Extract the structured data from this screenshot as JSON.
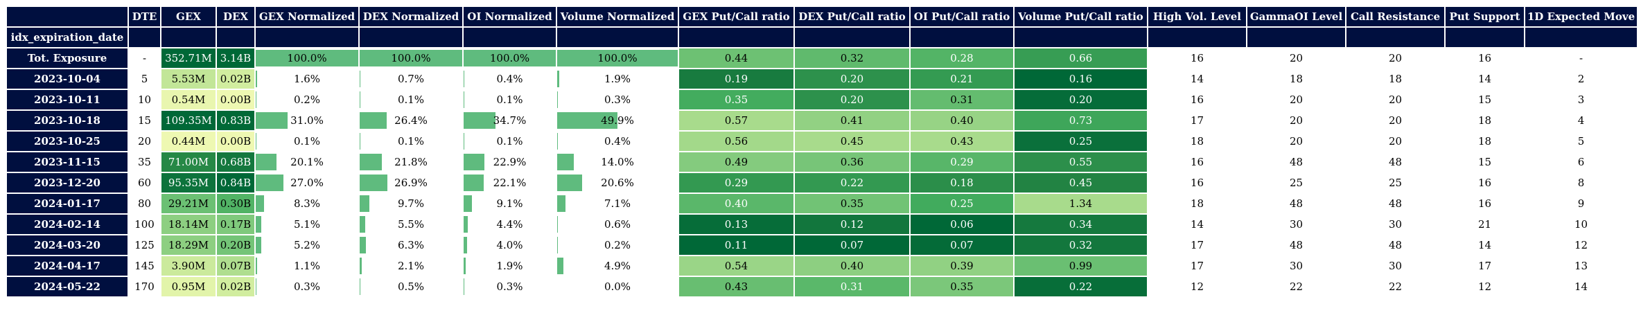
{
  "columns": [
    "DTE",
    "GEX",
    "DEX",
    "GEX Normalized",
    "DEX Normalized",
    "OI Normalized",
    "Volume Normalized",
    "GEX Put/Call ratio",
    "DEX Put/Call ratio",
    "OI Put/Call ratio",
    "Volume Put/Call ratio",
    "High Vol. Level",
    "GammaOI Level",
    "Call Resistance",
    "Put Support",
    "1D Expected Move"
  ],
  "index_name": "idx_expiration_date",
  "colors": {
    "header": "#000f3f",
    "bar": "#5fbb7e"
  },
  "rows": [
    {
      "label": "Tot. Exposure",
      "dte": "-",
      "gex": "352.71M",
      "dex": "3.14B",
      "gexn": "100.0%",
      "dexn": "100.0%",
      "oin": "100.0%",
      "voln": "100.0%",
      "gexpc": "0.44",
      "dexpc": "0.32",
      "oipc": "0.28",
      "volpc": "0.66",
      "hvl": "16",
      "gamma": "20",
      "cr": "20",
      "ps": "16",
      "em": "-"
    },
    {
      "label": "2023-10-04",
      "dte": "5",
      "gex": "5.53M",
      "dex": "0.02B",
      "gexn": "1.6%",
      "dexn": "0.7%",
      "oin": "0.4%",
      "voln": "1.9%",
      "gexpc": "0.19",
      "dexpc": "0.20",
      "oipc": "0.21",
      "volpc": "0.16",
      "hvl": "14",
      "gamma": "18",
      "cr": "18",
      "ps": "14",
      "em": "2"
    },
    {
      "label": "2023-10-11",
      "dte": "10",
      "gex": "0.54M",
      "dex": "0.00B",
      "gexn": "0.2%",
      "dexn": "0.1%",
      "oin": "0.1%",
      "voln": "0.3%",
      "gexpc": "0.35",
      "dexpc": "0.20",
      "oipc": "0.31",
      "volpc": "0.20",
      "hvl": "16",
      "gamma": "20",
      "cr": "20",
      "ps": "15",
      "em": "3"
    },
    {
      "label": "2023-10-18",
      "dte": "15",
      "gex": "109.35M",
      "dex": "0.83B",
      "gexn": "31.0%",
      "dexn": "26.4%",
      "oin": "34.7%",
      "voln": "49.9%",
      "gexpc": "0.57",
      "dexpc": "0.41",
      "oipc": "0.40",
      "volpc": "0.73",
      "hvl": "17",
      "gamma": "20",
      "cr": "20",
      "ps": "18",
      "em": "4"
    },
    {
      "label": "2023-10-25",
      "dte": "20",
      "gex": "0.44M",
      "dex": "0.00B",
      "gexn": "0.1%",
      "dexn": "0.1%",
      "oin": "0.1%",
      "voln": "0.4%",
      "gexpc": "0.56",
      "dexpc": "0.45",
      "oipc": "0.43",
      "volpc": "0.25",
      "hvl": "18",
      "gamma": "20",
      "cr": "20",
      "ps": "18",
      "em": "5"
    },
    {
      "label": "2023-11-15",
      "dte": "35",
      "gex": "71.00M",
      "dex": "0.68B",
      "gexn": "20.1%",
      "dexn": "21.8%",
      "oin": "22.9%",
      "voln": "14.0%",
      "gexpc": "0.49",
      "dexpc": "0.36",
      "oipc": "0.29",
      "volpc": "0.55",
      "hvl": "16",
      "gamma": "48",
      "cr": "48",
      "ps": "15",
      "em": "6"
    },
    {
      "label": "2023-12-20",
      "dte": "60",
      "gex": "95.35M",
      "dex": "0.84B",
      "gexn": "27.0%",
      "dexn": "26.9%",
      "oin": "22.1%",
      "voln": "20.6%",
      "gexpc": "0.29",
      "dexpc": "0.22",
      "oipc": "0.18",
      "volpc": "0.45",
      "hvl": "16",
      "gamma": "25",
      "cr": "25",
      "ps": "16",
      "em": "8"
    },
    {
      "label": "2024-01-17",
      "dte": "80",
      "gex": "29.21M",
      "dex": "0.30B",
      "gexn": "8.3%",
      "dexn": "9.7%",
      "oin": "9.1%",
      "voln": "7.1%",
      "gexpc": "0.40",
      "dexpc": "0.35",
      "oipc": "0.25",
      "volpc": "1.34",
      "hvl": "18",
      "gamma": "48",
      "cr": "48",
      "ps": "16",
      "em": "9"
    },
    {
      "label": "2024-02-14",
      "dte": "100",
      "gex": "18.14M",
      "dex": "0.17B",
      "gexn": "5.1%",
      "dexn": "5.5%",
      "oin": "4.4%",
      "voln": "0.6%",
      "gexpc": "0.13",
      "dexpc": "0.12",
      "oipc": "0.06",
      "volpc": "0.34",
      "hvl": "14",
      "gamma": "30",
      "cr": "30",
      "ps": "21",
      "em": "10"
    },
    {
      "label": "2024-03-20",
      "dte": "125",
      "gex": "18.29M",
      "dex": "0.20B",
      "gexn": "5.2%",
      "dexn": "6.3%",
      "oin": "4.0%",
      "voln": "0.2%",
      "gexpc": "0.11",
      "dexpc": "0.07",
      "oipc": "0.07",
      "volpc": "0.32",
      "hvl": "17",
      "gamma": "48",
      "cr": "48",
      "ps": "14",
      "em": "12"
    },
    {
      "label": "2024-04-17",
      "dte": "145",
      "gex": "3.90M",
      "dex": "0.07B",
      "gexn": "1.1%",
      "dexn": "2.1%",
      "oin": "1.9%",
      "voln": "4.9%",
      "gexpc": "0.54",
      "dexpc": "0.40",
      "oipc": "0.39",
      "volpc": "0.99",
      "hvl": "17",
      "gamma": "30",
      "cr": "30",
      "ps": "17",
      "em": "13"
    },
    {
      "label": "2024-05-22",
      "dte": "170",
      "gex": "0.95M",
      "dex": "0.02B",
      "gexn": "0.3%",
      "dexn": "0.5%",
      "oin": "0.3%",
      "voln": "0.0%",
      "gexpc": "0.43",
      "dexpc": "0.31",
      "oipc": "0.35",
      "volpc": "0.22",
      "hvl": "12",
      "gamma": "22",
      "cr": "22",
      "ps": "12",
      "em": "14"
    }
  ]
}
